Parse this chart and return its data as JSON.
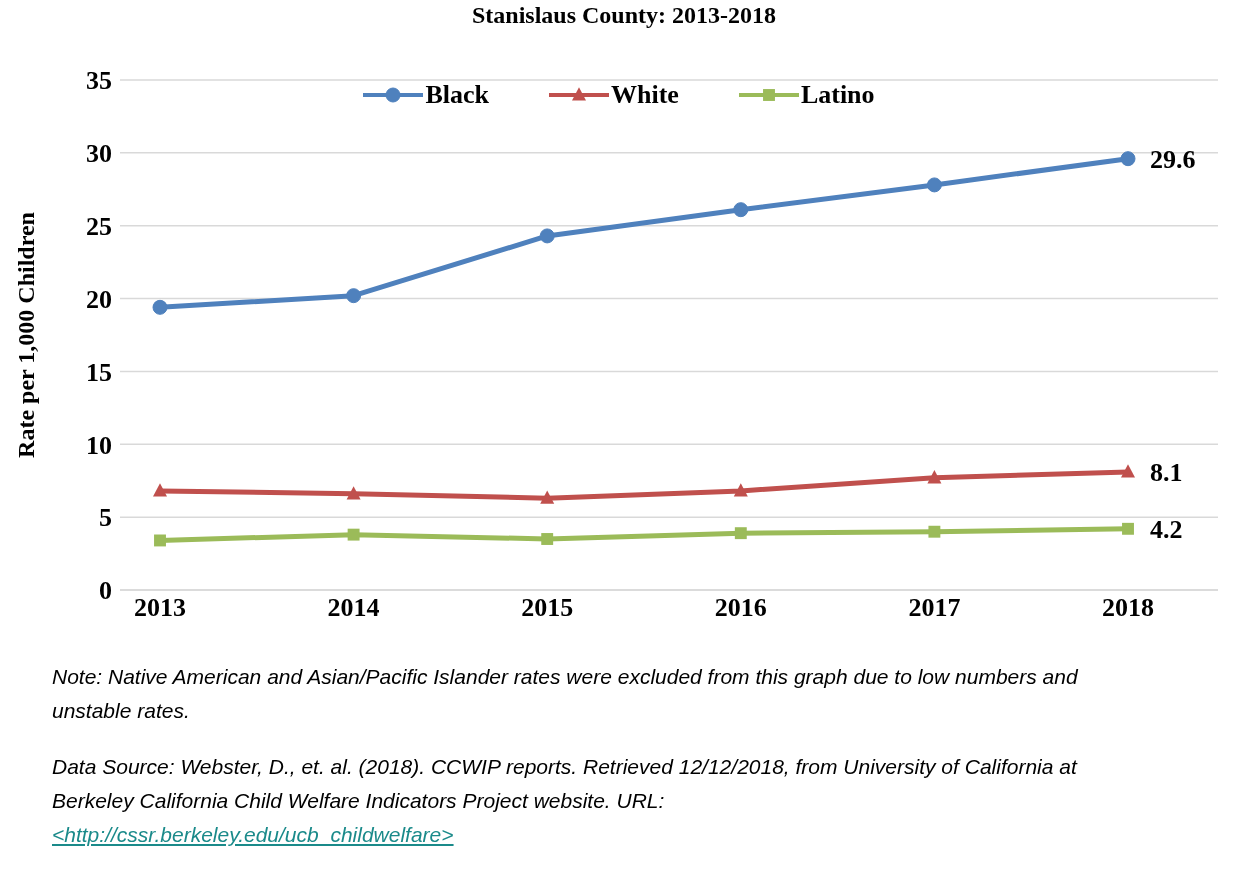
{
  "chart_data": {
    "type": "line",
    "title": "Stanislaus County: 2013-2018",
    "ylabel": "Rate per 1,000 Children",
    "categories": [
      "2013",
      "2014",
      "2015",
      "2016",
      "2017",
      "2018"
    ],
    "series": [
      {
        "name": "Black",
        "color": "#4f81bd",
        "marker": "circle",
        "values": [
          19.4,
          20.2,
          24.3,
          26.1,
          27.8,
          29.6
        ],
        "value_labels": [
          null,
          null,
          null,
          null,
          null,
          "29.6"
        ]
      },
      {
        "name": "White",
        "color": "#c0504d",
        "marker": "triangle",
        "values": [
          6.8,
          6.6,
          6.3,
          6.8,
          7.7,
          8.1
        ],
        "value_labels": [
          null,
          null,
          null,
          null,
          null,
          "8.1"
        ]
      },
      {
        "name": "Latino",
        "color": "#9bbb59",
        "marker": "square",
        "values": [
          3.4,
          3.8,
          3.5,
          3.9,
          4.0,
          4.2
        ],
        "value_labels": [
          null,
          null,
          null,
          null,
          null,
          "4.2"
        ]
      }
    ],
    "ylim": [
      0,
      35
    ],
    "yticks": [
      0,
      5,
      10,
      15,
      20,
      25,
      30,
      35
    ],
    "grid": "y",
    "legend": "top",
    "line_style": "solid",
    "annotations": [
      "Note: Native American and Asian/Pacific Islander rates were excluded from this graph due to low numbers and unstable rates.",
      "Data Source: Webster, D., et. al. (2018). CCWIP reports. Retrieved 12/12/2018, from University of California at Berkeley California Child Welfare Indicators Project website. URL:",
      "<http://cssr.berkeley.edu/ucb_childwelfare>"
    ]
  }
}
